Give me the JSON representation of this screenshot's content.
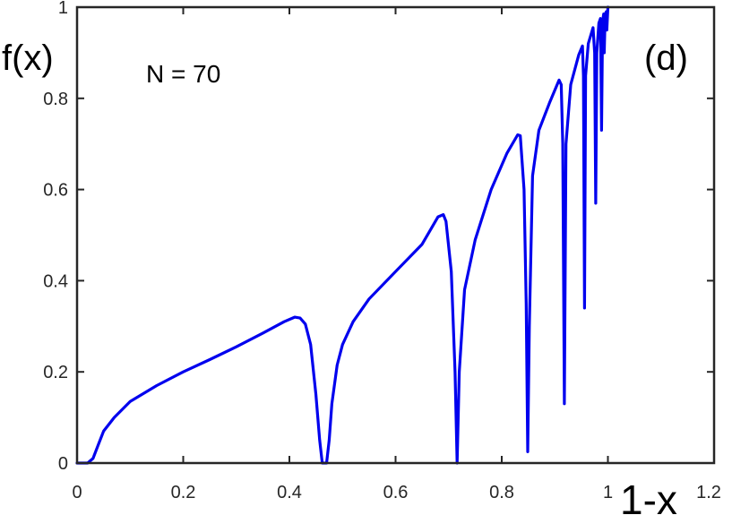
{
  "chart_data": {
    "type": "line",
    "title": "",
    "xlabel": "1-x",
    "ylabel": "f(x)",
    "panel_label": "(d)",
    "annotation": "N = 70",
    "xlim": [
      0,
      1.2
    ],
    "ylim": [
      0,
      1
    ],
    "xticks": [
      0,
      0.2,
      0.4,
      0.6,
      0.8,
      1,
      1.2
    ],
    "xtick_labels": [
      "0",
      "0.2",
      "0.4",
      "0.6",
      "0.8",
      "1",
      "1.2"
    ],
    "yticks": [
      0,
      0.2,
      0.4,
      0.6,
      0.8,
      1
    ],
    "ytick_labels": [
      "0",
      "0.2",
      "0.4",
      "0.6",
      "0.8",
      "1"
    ],
    "grid": false,
    "legend": "none",
    "series": [
      {
        "color": "#0000ee",
        "points": [
          [
            0,
            0
          ],
          [
            0.02,
            0
          ],
          [
            0.03,
            0.01
          ],
          [
            0.04,
            0.04
          ],
          [
            0.05,
            0.07
          ],
          [
            0.07,
            0.1
          ],
          [
            0.1,
            0.135
          ],
          [
            0.15,
            0.17
          ],
          [
            0.2,
            0.2
          ],
          [
            0.25,
            0.227
          ],
          [
            0.3,
            0.255
          ],
          [
            0.35,
            0.285
          ],
          [
            0.39,
            0.31
          ],
          [
            0.41,
            0.32
          ],
          [
            0.42,
            0.318
          ],
          [
            0.43,
            0.305
          ],
          [
            0.44,
            0.26
          ],
          [
            0.45,
            0.15
          ],
          [
            0.457,
            0.05
          ],
          [
            0.462,
            0
          ],
          [
            0.47,
            0
          ],
          [
            0.475,
            0.05
          ],
          [
            0.48,
            0.13
          ],
          [
            0.49,
            0.215
          ],
          [
            0.5,
            0.26
          ],
          [
            0.52,
            0.31
          ],
          [
            0.55,
            0.36
          ],
          [
            0.6,
            0.42
          ],
          [
            0.65,
            0.48
          ],
          [
            0.68,
            0.54
          ],
          [
            0.69,
            0.545
          ],
          [
            0.695,
            0.53
          ],
          [
            0.705,
            0.42
          ],
          [
            0.712,
            0.2
          ],
          [
            0.716,
            0
          ],
          [
            0.72,
            0.2
          ],
          [
            0.73,
            0.38
          ],
          [
            0.75,
            0.49
          ],
          [
            0.78,
            0.6
          ],
          [
            0.81,
            0.68
          ],
          [
            0.83,
            0.72
          ],
          [
            0.835,
            0.718
          ],
          [
            0.842,
            0.6
          ],
          [
            0.846,
            0.35
          ],
          [
            0.849,
            0.025
          ],
          [
            0.852,
            0.3
          ],
          [
            0.858,
            0.63
          ],
          [
            0.87,
            0.73
          ],
          [
            0.89,
            0.79
          ],
          [
            0.908,
            0.84
          ],
          [
            0.912,
            0.83
          ],
          [
            0.915,
            0.7
          ],
          [
            0.918,
            0.13
          ],
          [
            0.921,
            0.7
          ],
          [
            0.93,
            0.83
          ],
          [
            0.945,
            0.895
          ],
          [
            0.952,
            0.915
          ],
          [
            0.954,
            0.85
          ],
          [
            0.956,
            0.34
          ],
          [
            0.958,
            0.85
          ],
          [
            0.963,
            0.92
          ],
          [
            0.972,
            0.955
          ],
          [
            0.975,
            0.9
          ],
          [
            0.977,
            0.57
          ],
          [
            0.979,
            0.9
          ],
          [
            0.983,
            0.965
          ],
          [
            0.986,
            0.975
          ],
          [
            0.988,
            0.73
          ],
          [
            0.99,
            0.97
          ],
          [
            0.992,
            0.985
          ],
          [
            0.993,
            0.9
          ],
          [
            0.995,
            0.985
          ],
          [
            0.997,
            0.99
          ],
          [
            0.998,
            0.95
          ],
          [
            1.0,
            1.0
          ]
        ]
      }
    ]
  }
}
